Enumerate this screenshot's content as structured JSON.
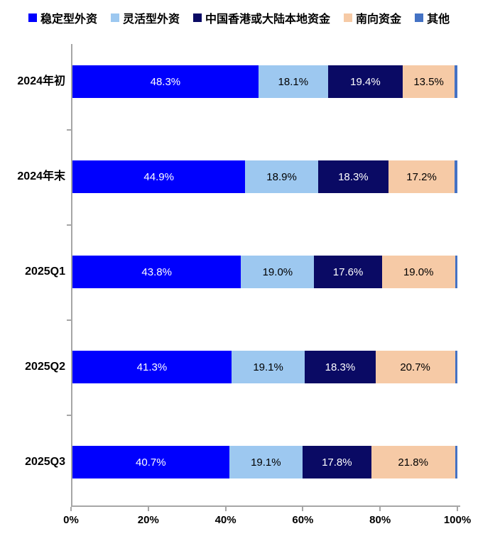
{
  "legend": {
    "position": "top",
    "items": [
      {
        "label": "稳定型外资",
        "color": "#0000fe"
      },
      {
        "label": "灵活型外资",
        "color": "#9dc8f0"
      },
      {
        "label": "中国香港或大陆本地资金",
        "color": "#0a0a64"
      },
      {
        "label": "南向资金",
        "color": "#f6caa6"
      },
      {
        "label": "其他",
        "color": "#4472c4"
      }
    ]
  },
  "axis": {
    "x_ticks": [
      "0%",
      "20%",
      "40%",
      "60%",
      "80%",
      "100%"
    ],
    "line_color": "#a6a6a6",
    "text_color": "#000000"
  },
  "chart_data": {
    "type": "bar",
    "orientation": "horizontal",
    "stacked": true,
    "title": "",
    "xlabel": "",
    "ylabel": "",
    "xlim": [
      0,
      100
    ],
    "grid": false,
    "legend_position": "top",
    "categories": [
      "2024年初",
      "2024年末",
      "2025Q1",
      "2025Q2",
      "2025Q3"
    ],
    "series": [
      {
        "name": "稳定型外资",
        "color": "#0000fe",
        "label_color": "#ffffff",
        "values": [
          48.3,
          44.9,
          43.8,
          41.3,
          40.7
        ],
        "labels": [
          "48.3%",
          "44.9%",
          "43.8%",
          "41.3%",
          "40.7%"
        ]
      },
      {
        "name": "灵活型外资",
        "color": "#9dc8f0",
        "label_color": "#000000",
        "values": [
          18.1,
          18.9,
          19.0,
          19.1,
          19.1
        ],
        "labels": [
          "18.1%",
          "18.9%",
          "19.0%",
          "19.1%",
          "19.1%"
        ]
      },
      {
        "name": "中国香港或大陆本地资金",
        "color": "#0a0a64",
        "label_color": "#ffffff",
        "values": [
          19.4,
          18.3,
          17.6,
          18.3,
          17.8
        ],
        "labels": [
          "19.4%",
          "18.3%",
          "17.6%",
          "18.3%",
          "17.8%"
        ]
      },
      {
        "name": "南向资金",
        "color": "#f6caa6",
        "label_color": "#000000",
        "values": [
          13.5,
          17.2,
          19.0,
          20.7,
          21.8
        ],
        "labels": [
          "13.5%",
          "17.2%",
          "19.0%",
          "20.7%",
          "21.8%"
        ]
      },
      {
        "name": "其他",
        "color": "#4472c4",
        "label_color": "#ffffff",
        "values": [
          0.7,
          0.7,
          0.6,
          0.6,
          0.6
        ],
        "labels": []
      }
    ]
  }
}
